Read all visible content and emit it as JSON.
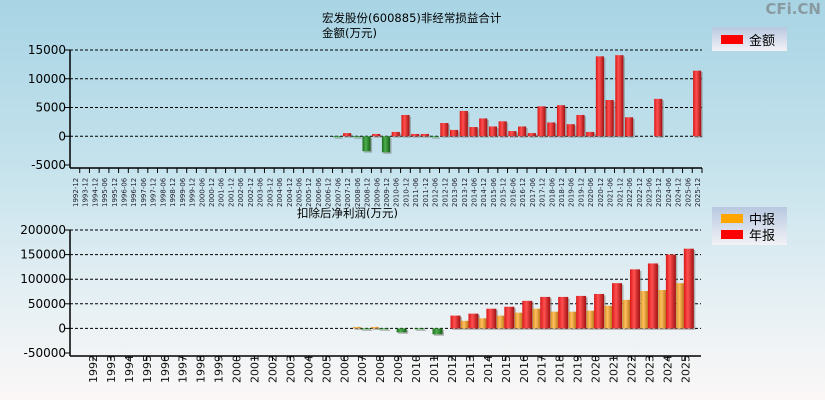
{
  "watermark": "CFi.CN",
  "chart_data": [
    {
      "type": "bar",
      "title": "宏发股份(600885)非经常损益合计",
      "ylabel": "金额(万元)",
      "ylim": [
        -5000,
        15000
      ],
      "yticks": [
        "15000",
        "10000",
        "5000",
        "0",
        "-5000"
      ],
      "ytick_values": [
        15000,
        10000,
        5000,
        0,
        -5000
      ],
      "grid": true,
      "legend": {
        "position": "top-right",
        "entries": [
          {
            "label": "金额",
            "color": "#ff0000"
          }
        ]
      },
      "positive_color": "#ff2a2a",
      "negative_color": "#2e8b2e",
      "categories": [
        "1992-12",
        "1993-12",
        "1994-12",
        "1995-06",
        "1995-12",
        "1996-06",
        "1996-12",
        "1997-06",
        "1997-12",
        "1998-06",
        "1998-12",
        "1999-06",
        "1999-12",
        "2000-06",
        "2000-12",
        "2001-06",
        "2001-12",
        "2002-06",
        "2002-12",
        "2003-06",
        "2003-12",
        "2004-06",
        "2004-12",
        "2005-06",
        "2005-12",
        "2006-06",
        "2006-12",
        "2007-06",
        "2007-12",
        "2008-06",
        "2008-12",
        "2009-06",
        "2009-12",
        "2010-06",
        "2010-12",
        "2011-06",
        "2011-12",
        "2012-06",
        "2012-12",
        "2013-06",
        "2013-12",
        "2014-06",
        "2014-12",
        "2015-06",
        "2015-12",
        "2016-06",
        "2016-12",
        "2017-06",
        "2017-12",
        "2018-06",
        "2018-12",
        "2019-06",
        "2019-12",
        "2020-06",
        "2020-12",
        "2021-06",
        "2021-12",
        "2022-06",
        "2022-12",
        "2023-06",
        "2023-12",
        "2024-06",
        "2024-12",
        "2025-06",
        "2025-12"
      ],
      "values": [
        null,
        null,
        null,
        null,
        null,
        null,
        null,
        null,
        null,
        null,
        null,
        null,
        null,
        null,
        null,
        null,
        null,
        null,
        null,
        null,
        null,
        null,
        null,
        null,
        null,
        null,
        null,
        -100,
        550,
        -100,
        -2600,
        400,
        -2800,
        750,
        3700,
        400,
        400,
        -100,
        2300,
        1100,
        4400,
        1600,
        3100,
        1700,
        2600,
        900,
        1700,
        550,
        5200,
        2400,
        5400,
        2100,
        3700,
        750,
        13900,
        6300,
        14100,
        3300,
        null,
        null,
        6500,
        null,
        null,
        null,
        11400
      ]
    },
    {
      "type": "bar",
      "title": "扣除后净利润(万元)",
      "ylim": [
        -50000,
        200000
      ],
      "yticks": [
        "200000",
        "150000",
        "100000",
        "50000",
        "0",
        "-50000"
      ],
      "ytick_values": [
        200000,
        150000,
        100000,
        50000,
        0,
        -50000
      ],
      "grid": true,
      "legend": {
        "position": "top-right",
        "entries": [
          {
            "label": "中报",
            "color": "#ffa500"
          },
          {
            "label": "年报",
            "color": "#ff0000"
          }
        ]
      },
      "negative_color": "#2e8b2e",
      "categories": [
        "1992",
        "1993",
        "1994",
        "1995",
        "1996",
        "1997",
        "1998",
        "1999",
        "2000",
        "2001",
        "2002",
        "2003",
        "2004",
        "2005",
        "2006",
        "2007",
        "2008",
        "2009",
        "2010",
        "2011",
        "2012",
        "2013",
        "2014",
        "2015",
        "2016",
        "2017",
        "2018",
        "2019",
        "2020",
        "2021",
        "2022",
        "2023",
        "2024",
        "2025"
      ],
      "series": [
        {
          "name": "中报",
          "color": "#f0a030",
          "values": [
            null,
            null,
            null,
            null,
            null,
            null,
            null,
            null,
            null,
            null,
            null,
            null,
            null,
            null,
            null,
            3000,
            3000,
            null,
            null,
            null,
            null,
            15400,
            20600,
            26000,
            32000,
            40000,
            34000,
            34000,
            36000,
            46000,
            58000,
            76000,
            78000,
            92000
          ]
        },
        {
          "name": "年报",
          "color": "#ff2a2a",
          "values": [
            null,
            null,
            null,
            null,
            null,
            null,
            null,
            null,
            null,
            null,
            null,
            null,
            null,
            null,
            null,
            -500,
            -500,
            -8000,
            -1000,
            -12000,
            26000,
            30000,
            40000,
            44000,
            56000,
            64000,
            64000,
            66000,
            70000,
            92000,
            120000,
            132000,
            150000,
            162000
          ]
        }
      ]
    }
  ]
}
